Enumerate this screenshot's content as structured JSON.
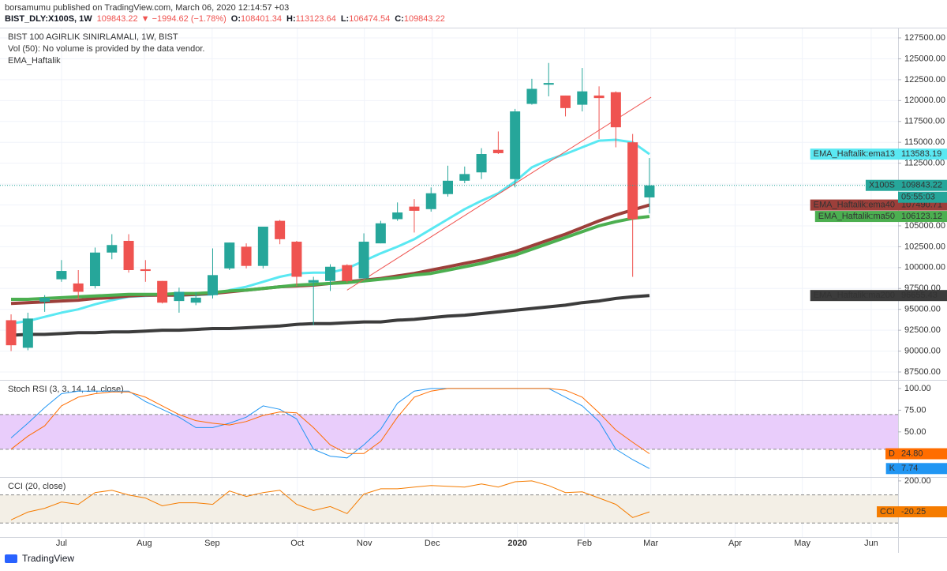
{
  "header": {
    "publisher": "borsamumu published on TradingView.com, March 06, 2020 12:14:57 +03",
    "symbol": "BIST_DLY:X100S, 1W",
    "change": "▼ −1994.62 (−1.78%)",
    "open_label": "O:",
    "high_label": "H:",
    "low_label": "L:",
    "close_label": "C:"
  },
  "footer": "TradingView",
  "chart_data": [
    {
      "type": "candlestick",
      "title": "BIST 100 AGIRLIK SINIRLAMALI, 1W, BIST",
      "subtitle": "Vol (50): No volume is provided by the data vendor.",
      "legend_title": "EMA_Haftalik",
      "symbol_label": "X100S",
      "countdown": "05:55:03",
      "up_color": "#26a69a",
      "down_color": "#ef5350",
      "open": [
        93700,
        90400,
        95900,
        98600,
        98100,
        97800,
        101800,
        103200,
        99800,
        98400,
        96000,
        95800,
        96700,
        99900,
        102500,
        100200,
        105600,
        103100,
        98200,
        98400,
        100300,
        98700,
        102900,
        105800,
        107300,
        107000,
        108800,
        110400,
        111400,
        114100,
        110600,
        119600,
        121900,
        120600,
        119500,
        120600,
        121000,
        115000,
        108401.34
      ],
      "high": [
        94400,
        94600,
        96700,
        100900,
        99700,
        102400,
        104000,
        104000,
        100900,
        98400,
        97600,
        97100,
        102300,
        103000,
        102900,
        104900,
        105700,
        103200,
        98900,
        100400,
        100400,
        104100,
        105600,
        107800,
        108200,
        109600,
        112200,
        112100,
        114300,
        116300,
        119000,
        122600,
        124500,
        120600,
        123900,
        121700,
        121100,
        116000,
        113123.64
      ],
      "low": [
        90000,
        90100,
        94700,
        98300,
        96200,
        97500,
        101000,
        99400,
        98300,
        95700,
        94600,
        95500,
        96300,
        99700,
        99900,
        99900,
        102800,
        97800,
        93100,
        97200,
        98200,
        98600,
        102900,
        105600,
        104200,
        106700,
        108500,
        110100,
        110600,
        113600,
        109600,
        119500,
        120500,
        118100,
        118700,
        115400,
        114400,
        98900,
        106474.54
      ],
      "close": [
        90700,
        93900,
        96400,
        99600,
        97100,
        101800,
        102700,
        99700,
        99600,
        95800,
        97100,
        96400,
        99100,
        103000,
        100200,
        104900,
        103400,
        98900,
        98500,
        100100,
        98400,
        103100,
        105300,
        106600,
        106800,
        108900,
        110400,
        111200,
        113600,
        113700,
        118700,
        121400,
        122100,
        119100,
        121100,
        120300,
        116800,
        105800,
        109843.22
      ],
      "series": [
        {
          "name": "EMA_Haftalik:ema13",
          "color": "#5ae8f2",
          "text_color": "#000000",
          "width": 3,
          "values": [
            93300,
            93600,
            94100,
            94600,
            95000,
            95600,
            96100,
            96500,
            96600,
            96700,
            96700,
            96700,
            96800,
            97300,
            97700,
            98300,
            98900,
            99300,
            99400,
            99400,
            99900,
            100800,
            101700,
            102500,
            103400,
            104600,
            105800,
            107000,
            108000,
            108900,
            110300,
            112000,
            112900,
            113600,
            114400,
            115200,
            115300,
            115000,
            113583.19
          ]
        },
        {
          "name": "EMA_Haftalik:ema40",
          "color": "#9c3f3a",
          "text_color": "#ffffff",
          "width": 4,
          "values": [
            95700,
            95800,
            95900,
            96000,
            96100,
            96300,
            96400,
            96600,
            96700,
            96700,
            96700,
            96800,
            96900,
            97100,
            97300,
            97500,
            97700,
            97800,
            97900,
            98100,
            98300,
            98500,
            98700,
            99000,
            99300,
            99700,
            100100,
            100500,
            100900,
            101400,
            101900,
            102600,
            103300,
            104000,
            104800,
            105600,
            106300,
            106900,
            107490.71
          ]
        },
        {
          "name": "EMA_Haftalik:ma50",
          "color": "#4caf50",
          "text_color": "#000000",
          "width": 4,
          "values": [
            96200,
            96200,
            96300,
            96400,
            96500,
            96600,
            96700,
            96800,
            96800,
            96800,
            96900,
            96900,
            97000,
            97200,
            97300,
            97500,
            97700,
            97900,
            98000,
            98100,
            98200,
            98400,
            98600,
            98800,
            99100,
            99300,
            99700,
            100100,
            100500,
            101000,
            101500,
            102200,
            102900,
            103600,
            104300,
            105000,
            105500,
            105900,
            106123.12
          ]
        },
        {
          "name": "EMA_Haftalik:ma200",
          "color": "#3c3c3c",
          "text_color": "#ffffff",
          "width": 4,
          "values": [
            91900,
            92000,
            92000,
            92100,
            92200,
            92200,
            92300,
            92300,
            92400,
            92500,
            92500,
            92600,
            92700,
            92700,
            92800,
            92900,
            93000,
            93200,
            93300,
            93300,
            93400,
            93500,
            93500,
            93700,
            93800,
            94000,
            94200,
            94300,
            94500,
            94700,
            94900,
            95100,
            95300,
            95500,
            95800,
            96000,
            96300,
            96500,
            96655.43
          ]
        }
      ],
      "trendline": {
        "x": [
          20,
          38.1
        ],
        "values": [
          97300,
          120400
        ],
        "color": "#ef5350"
      },
      "xlim": [
        -0.66,
        52.8
      ],
      "xticks": [
        {
          "value": 3,
          "label": "Jul"
        },
        {
          "value": 7.93,
          "label": "Aug"
        },
        {
          "value": 11.97,
          "label": "Sep"
        },
        {
          "value": 17.04,
          "label": "Oct"
        },
        {
          "value": 21.03,
          "label": "Nov"
        },
        {
          "value": 25.07,
          "label": "Dec"
        },
        {
          "value": 30.14,
          "label": "2020"
        },
        {
          "value": 34.13,
          "label": "Feb"
        },
        {
          "value": 38.08,
          "label": "Mar"
        },
        {
          "value": 43.1,
          "label": "Apr"
        },
        {
          "value": 47.1,
          "label": "May"
        },
        {
          "value": 51.2,
          "label": "Jun"
        }
      ],
      "ylim": [
        86555,
        128635
      ],
      "yticks": [
        {
          "value": 87500,
          "label": "87500.00"
        },
        {
          "value": 90000,
          "label": "90000.00"
        },
        {
          "value": 92500,
          "label": "92500.00"
        },
        {
          "value": 95000,
          "label": "95000.00"
        },
        {
          "value": 97500,
          "label": "97500.00"
        },
        {
          "value": 100000,
          "label": "100000.00"
        },
        {
          "value": 102500,
          "label": "102500.00"
        },
        {
          "value": 105000,
          "label": "105000.00"
        },
        {
          "value": 107500,
          "label": "107500.00"
        },
        {
          "value": 110000,
          "label": "110000.00"
        },
        {
          "value": 112500,
          "label": "112500.00"
        },
        {
          "value": 115000,
          "label": "115000.00"
        },
        {
          "value": 117500,
          "label": "117500.00"
        },
        {
          "value": 120000,
          "label": "120000.00"
        },
        {
          "value": 122500,
          "label": "122500.00"
        },
        {
          "value": 125000,
          "label": "125000.00"
        },
        {
          "value": 127500,
          "label": "127500.00"
        }
      ],
      "grid": true
    },
    {
      "type": "line",
      "title": "Stoch RSI (3, 3, 14, 14, close)",
      "series": [
        {
          "name": "K",
          "color": "#2196f3",
          "text_color": "#ffffff",
          "values": [
            43,
            60,
            78,
            94,
            97,
            97,
            97,
            97,
            85,
            76,
            67,
            55,
            55,
            60,
            67,
            80,
            76,
            65,
            30,
            22,
            20,
            35,
            53,
            83,
            97,
            100,
            100,
            100,
            100,
            100,
            100,
            100,
            100,
            90,
            80,
            62,
            30,
            18,
            7.74
          ]
        },
        {
          "name": "D",
          "color": "#ff6d00",
          "text_color": "#ffffff",
          "values": [
            30,
            45,
            57,
            80,
            90,
            94,
            96,
            96,
            90,
            80,
            70,
            63,
            60,
            58,
            62,
            69,
            73,
            72,
            55,
            35,
            25,
            25,
            39,
            67,
            90,
            97,
            100,
            100,
            100,
            100,
            100,
            100,
            100,
            98,
            90,
            72,
            52,
            38,
            24.8
          ],
          "value_labels": [
            null,
            null,
            null,
            null,
            null,
            null,
            null,
            null,
            null,
            null,
            null,
            null,
            null,
            null,
            null,
            null,
            null,
            null,
            null,
            null,
            null,
            null,
            null,
            null,
            null,
            null,
            null,
            null,
            null,
            null,
            null,
            null,
            null,
            null,
            null,
            null,
            null,
            null,
            "24.80"
          ]
        }
      ],
      "bands": [
        30,
        70
      ],
      "band_color": "#e9cdfb",
      "ylim": [
        -2,
        109
      ],
      "yticks": [
        {
          "value": 50,
          "label": "50.00"
        },
        {
          "value": 75,
          "label": "75.00"
        },
        {
          "value": 100,
          "label": "100.00"
        }
      ]
    },
    {
      "type": "line",
      "title": "CCI (20, close)",
      "series": [
        {
          "name": "CCI",
          "color": "#f57c00",
          "text_color": "#ffffff",
          "values": [
            -78,
            -22,
            5,
            50,
            33,
            117,
            133,
            100,
            78,
            22,
            44,
            44,
            33,
            128,
            89,
            117,
            133,
            33,
            -11,
            17,
            -33,
            106,
            144,
            144,
            156,
            167,
            161,
            156,
            178,
            156,
            194,
            200,
            167,
            117,
            122,
            78,
            33,
            -61,
            -20.25
          ]
        }
      ],
      "bands": [
        -100,
        100
      ],
      "band_color": "#f3efe6",
      "ylim": [
        -200,
        222
      ],
      "yticks": [
        {
          "value": 200,
          "label": "200.00"
        }
      ]
    }
  ]
}
